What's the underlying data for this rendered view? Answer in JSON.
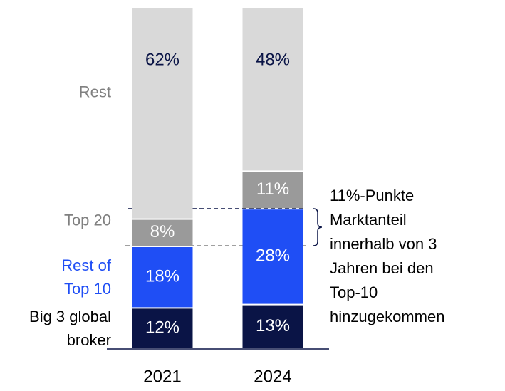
{
  "chart_data": {
    "type": "stacked_bar",
    "categories": [
      "2021",
      "2024"
    ],
    "series": [
      {
        "name": "Big 3 global broker",
        "color": "#0a1446",
        "label_color": "#000000",
        "text_color": "#ffffff",
        "values": [
          12,
          13
        ],
        "value_labels": [
          "12%",
          "13%"
        ]
      },
      {
        "name": "Rest of Top 10",
        "color": "#1f4ef5",
        "label_color": "#1f4ef5",
        "text_color": "#ffffff",
        "values": [
          18,
          28
        ],
        "value_labels": [
          "18%",
          "28%"
        ]
      },
      {
        "name": "Top 20",
        "color": "#9a9a9a",
        "label_color": "#808080",
        "text_color": "#ffffff",
        "values": [
          8,
          11
        ],
        "value_labels": [
          "8%",
          "11%"
        ]
      },
      {
        "name": "Rest",
        "color": "#d9d9d9",
        "label_color": "#808080",
        "text_color": "#0a1446",
        "values": [
          62,
          48
        ],
        "value_labels": [
          "62%",
          "48%"
        ]
      }
    ],
    "annotation": "11%-Punkte Marktanteil innerhalb von 3 Jahren bei den Top-10 hinzugekommen"
  }
}
